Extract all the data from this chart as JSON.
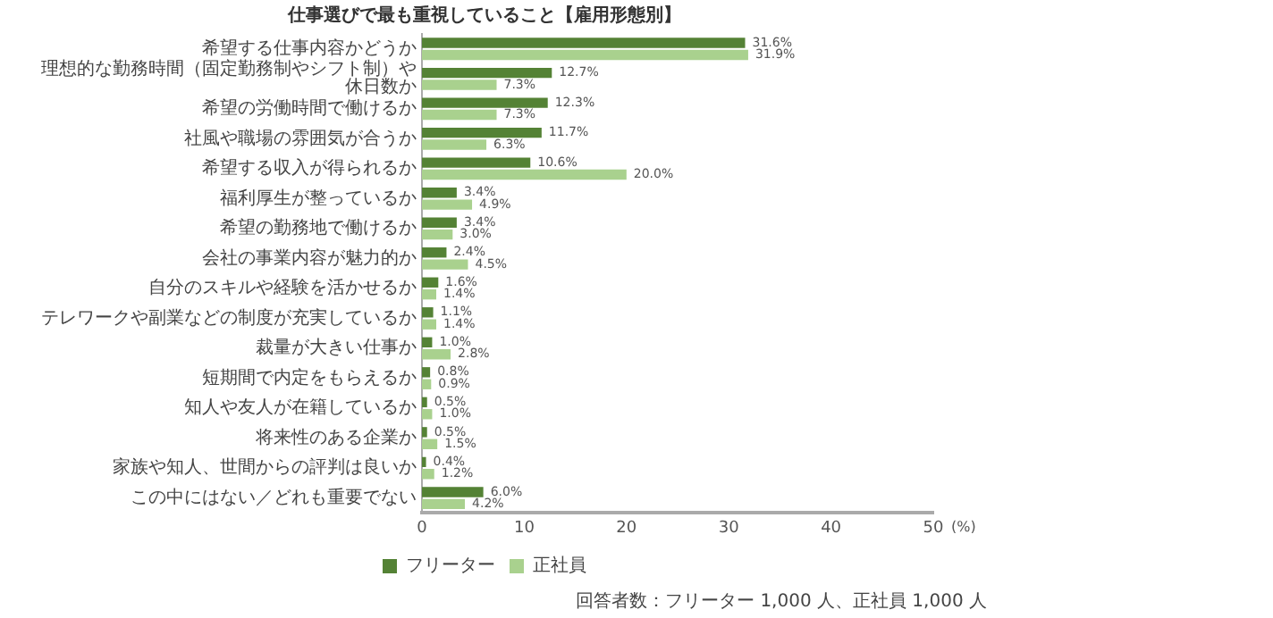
{
  "chart_data": {
    "type": "bar",
    "orientation": "horizontal",
    "title": "仕事選びで最も重視していること【雇用形態別】",
    "xlabel": "(%)",
    "categories": [
      "希望する仕事内容かどうか",
      "理想的な勤務時間（固定勤務制やシフト制）や休日数か",
      "希望の労働時間で働けるか",
      "社風や職場の雰囲気が合うか",
      "希望する収入が得られるか",
      "福利厚生が整っているか",
      "希望の勤務地で働けるか",
      "会社の事業内容が魅力的か",
      "自分のスキルや経験を活かせるか",
      "テレワークや副業などの制度が充実しているか",
      "裁量が大きい仕事か",
      "短期間で内定をもらえるか",
      "知人や友人が在籍しているか",
      "将来性のある企業か",
      "家族や知人、世間からの評判は良いか",
      "この中にはない／どれも重要でない"
    ],
    "series": [
      {
        "name": "フリーター",
        "color": "#548235",
        "values": [
          31.6,
          12.7,
          12.3,
          11.7,
          10.6,
          3.4,
          3.4,
          2.4,
          1.6,
          1.1,
          1.0,
          0.8,
          0.5,
          0.5,
          0.4,
          6.0
        ],
        "value_labels": [
          "31.6%",
          "12.7%",
          "12.3%",
          "11.7%",
          "10.6%",
          "3.4%",
          "3.4%",
          "2.4%",
          "1.6%",
          "1.1%",
          "1.0%",
          "0.8%",
          "0.5%",
          "0.5%",
          "0.4%",
          "6.0%"
        ]
      },
      {
        "name": "正社員",
        "color": "#a9d18e",
        "values": [
          31.9,
          7.3,
          7.3,
          6.3,
          20.0,
          4.9,
          3.0,
          4.5,
          1.4,
          1.4,
          2.8,
          0.9,
          1.0,
          1.5,
          1.2,
          4.2
        ],
        "value_labels": [
          "31.9%",
          "7.3%",
          "7.3%",
          "6.3%",
          "20.0%",
          "4.9%",
          "3.0%",
          "4.5%",
          "1.4%",
          "1.4%",
          "2.8%",
          "0.9%",
          "1.0%",
          "1.5%",
          "1.2%",
          "4.2%"
        ]
      }
    ],
    "xlim": [
      0,
      50
    ],
    "xticks": [
      0,
      10,
      20,
      30,
      40,
      50
    ],
    "grid": false,
    "legend": "bottom",
    "annotations": [
      "回答者数：フリーター 1,000 人、正社員 1,000 人"
    ]
  }
}
